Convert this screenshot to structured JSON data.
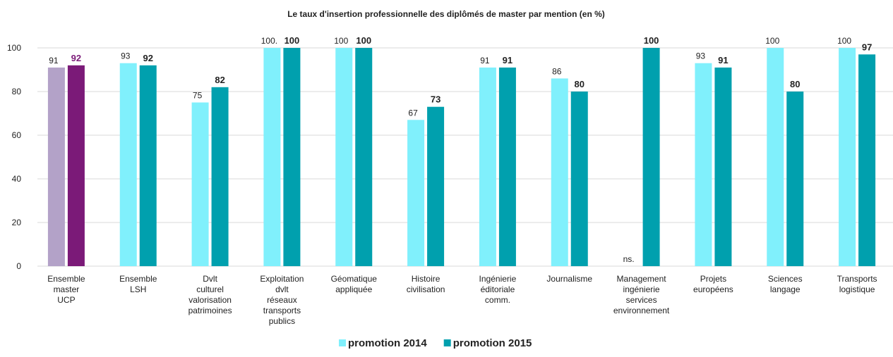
{
  "chart_data": {
    "type": "bar",
    "title": "Le taux d'insertion professionnelle  des diplômés  de master par mention  (en %)",
    "categories": [
      "Ensemble\nmaster\nUCP",
      "Ensemble\nLSH",
      "Dvlt\nculturel\nvalorisation\npatrimoines",
      "Exploitation\ndvlt\nréseaux\ntransports\npublics",
      "Géomatique\nappliquée",
      "Histoire\ncivilisation",
      "Ingénierie\néditoriale\ncomm.",
      "Journalisme",
      "Management\ningénierie\nservices\nenvironnement",
      "Projets\neuropéens",
      "Sciences\nlangage",
      "Transports\nlogistique"
    ],
    "series": [
      {
        "name": "promotion 2014",
        "color": "#80f0fc",
        "colors": [
          "#b3a2c8",
          "#80f0fc",
          "#80f0fc",
          "#80f0fc",
          "#80f0fc",
          "#80f0fc",
          "#80f0fc",
          "#80f0fc",
          "#80f0fc",
          "#80f0fc",
          "#80f0fc",
          "#80f0fc"
        ],
        "values": [
          91,
          93,
          75,
          100,
          100,
          67,
          91,
          86,
          null,
          93,
          100,
          100
        ],
        "value_labels": [
          "91",
          "93",
          "75",
          "100.",
          "100",
          "67",
          "91",
          "86",
          "ns.",
          "93",
          "100",
          "100"
        ]
      },
      {
        "name": "promotion 2015",
        "color": "#00a0ae",
        "colors": [
          "#7b1a78",
          "#00a0ae",
          "#00a0ae",
          "#00a0ae",
          "#00a0ae",
          "#00a0ae",
          "#00a0ae",
          "#00a0ae",
          "#00a0ae",
          "#00a0ae",
          "#00a0ae",
          "#00a0ae"
        ],
        "values": [
          92,
          92,
          82,
          100,
          100,
          73,
          91,
          80,
          100,
          91,
          80,
          97
        ]
      }
    ],
    "ylim": [
      0,
      100
    ],
    "yticks": [
      0,
      20,
      40,
      60,
      80,
      100
    ],
    "grid": true,
    "legend": "bottom"
  }
}
